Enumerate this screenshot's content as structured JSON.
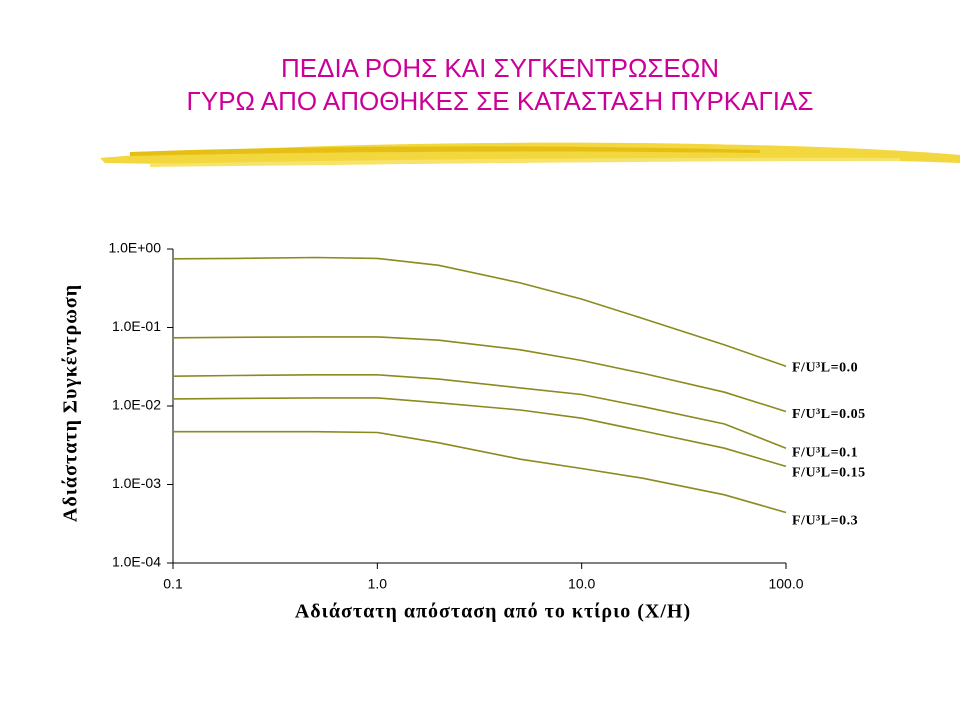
{
  "chart_data": {
    "type": "line",
    "title_lines": [
      "ΠΕΔΙΑ ΡΟΗΣ ΚΑΙ ΣΥΓΚΕΝΤΡΩΣΕΩΝ",
      "ΓΥΡΩ ΑΠΟ ΑΠΟΘΗΚΕΣ ΣΕ ΚΑΤΑΣΤΑΣΗ ΠΥΡΚΑΓΙΑΣ"
    ],
    "x_label": "Αδιάστατη απόσταση από το κτίριο (X/H)",
    "y_label": "Αδιάστατη Συγκέντρωση",
    "x_log": true,
    "y_log": true,
    "xlim": [
      0.1,
      100
    ],
    "ylim": [
      0.0001,
      1
    ],
    "xticks": [
      {
        "value": 0.1,
        "label": "0.1"
      },
      {
        "value": 1,
        "label": "1.0"
      },
      {
        "value": 10,
        "label": "10.0"
      },
      {
        "value": 100,
        "label": "100.0"
      }
    ],
    "yticks": [
      {
        "value": 1,
        "label": "1.0E+00"
      },
      {
        "value": 0.1,
        "label": "1.0E-01"
      },
      {
        "value": 0.01,
        "label": "1.0E-02"
      },
      {
        "value": 0.001,
        "label": "1.0E-03"
      },
      {
        "value": 0.0001,
        "label": "1.0E-04"
      }
    ],
    "x": [
      0.1,
      0.2,
      0.5,
      1,
      2,
      5,
      10,
      20,
      50,
      100
    ],
    "series": [
      {
        "name": "F/U³L=0.0",
        "color": "#8a8a1e",
        "values": [
          0.75,
          0.76,
          0.78,
          0.76,
          0.62,
          0.37,
          0.23,
          0.13,
          0.06,
          0.032
        ]
      },
      {
        "name": "F/U³L=0.05",
        "color": "#8a8a1e",
        "values": [
          0.074,
          0.075,
          0.076,
          0.076,
          0.069,
          0.052,
          0.038,
          0.026,
          0.015,
          0.0085
        ]
      },
      {
        "name": "F/U³L=0.1",
        "color": "#8a8a1e",
        "values": [
          0.024,
          0.0245,
          0.025,
          0.025,
          0.022,
          0.017,
          0.014,
          0.0098,
          0.0059,
          0.0029
        ]
      },
      {
        "name": "F/U³L=0.15",
        "color": "#8a8a1e",
        "values": [
          0.0123,
          0.0125,
          0.0127,
          0.0127,
          0.011,
          0.0089,
          0.007,
          0.0048,
          0.0029,
          0.0017
        ]
      },
      {
        "name": "F/U³L=0.3",
        "color": "#8a8a1e",
        "values": [
          0.0047,
          0.0047,
          0.0047,
          0.0046,
          0.0034,
          0.0021,
          0.0016,
          0.0012,
          0.00074,
          0.00044
        ]
      }
    ]
  }
}
